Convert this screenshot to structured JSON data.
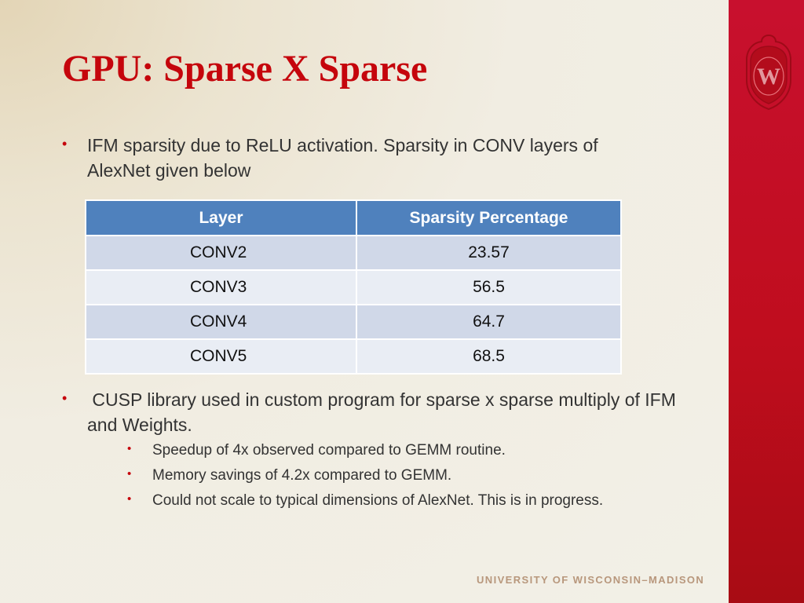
{
  "slide": {
    "title": "GPU: Sparse X Sparse",
    "bullet1": {
      "line1": "IFM sparsity due to ReLU activation.  Sparsity in CONV layers of",
      "line2": "AlexNet given below"
    },
    "table": {
      "headers": [
        "Layer",
        "Sparsity Percentage"
      ],
      "rows": [
        [
          "CONV2",
          "23.57"
        ],
        [
          "CONV3",
          "56.5"
        ],
        [
          "CONV4",
          "64.7"
        ],
        [
          "CONV5",
          "68.5"
        ]
      ]
    },
    "bullet2": {
      "line1": " CUSP library used in custom program for sparse x sparse multiply of IFM",
      "line2": "and Weights."
    },
    "sub_bullets": [
      "Speedup of 4x observed compared to GEMM routine.",
      "Memory savings of 4.2x compared to GEMM.",
      "Could not scale to typical dimensions of AlexNet. This is in progress."
    ],
    "footer": "UNIVERSITY OF WISCONSIN–MADISON",
    "bullet_glyph": "•"
  },
  "colors": {
    "title": "#c5050c",
    "sidebar": "#c5050c",
    "table_header": "#4f81bd",
    "footer": "#b8977c"
  },
  "icons": {
    "crest": "uw-crest-icon"
  }
}
